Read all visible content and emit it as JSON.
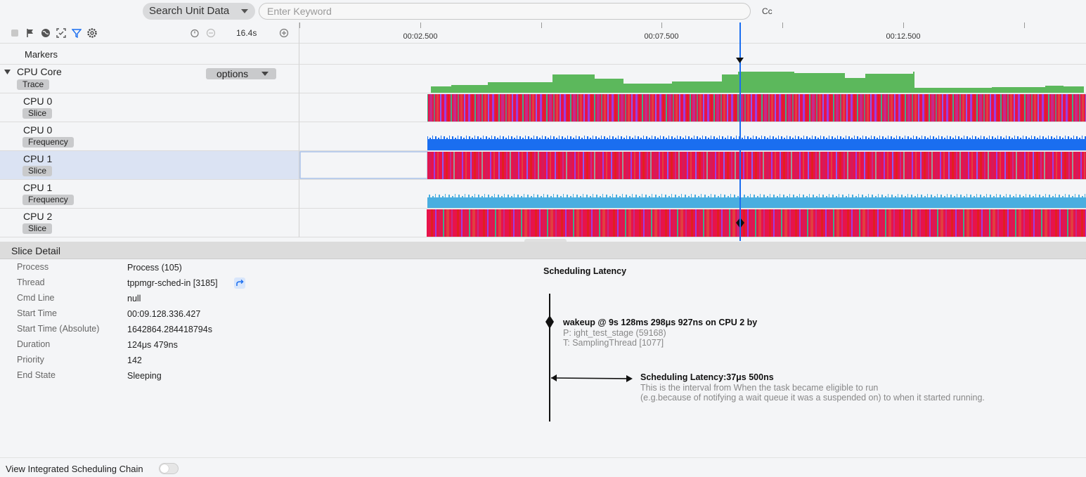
{
  "search": {
    "unit_label": "Search Unit Data",
    "keyword_placeholder": "Enter Keyword",
    "case_label": "Cc"
  },
  "toolbar": {
    "zoom_value": "16.4s"
  },
  "ruler": {
    "ticks": [
      "00:02.500",
      "00:07.500",
      "00:12.500"
    ]
  },
  "rows": {
    "markers": "Markers",
    "cpu_core": {
      "name": "CPU Core",
      "tag": "Trace",
      "options": "options"
    },
    "tracks": [
      {
        "name": "CPU 0",
        "tag": "Slice"
      },
      {
        "name": "CPU 0",
        "tag": "Frequency"
      },
      {
        "name": "CPU 1",
        "tag": "Slice"
      },
      {
        "name": "CPU 1",
        "tag": "Frequency"
      },
      {
        "name": "CPU 2",
        "tag": "Slice"
      }
    ]
  },
  "detail": {
    "title": "Slice Detail",
    "fields": [
      {
        "key": "Process",
        "value": "Process (105)"
      },
      {
        "key": "Thread",
        "value": "tppmgr-sched-in [3185]"
      },
      {
        "key": "Cmd Line",
        "value": "null"
      },
      {
        "key": "Start Time",
        "value": "00:09.128.336.427"
      },
      {
        "key": "Start Time (Absolute)",
        "value": "1642864.284418794s"
      },
      {
        "key": "Duration",
        "value": "124μs 479ns"
      },
      {
        "key": "Priority",
        "value": "142"
      },
      {
        "key": "End State",
        "value": "Sleeping"
      }
    ],
    "latency": {
      "title": "Scheduling Latency",
      "wakeup": "wakeup @ 9s 128ms 298μs 927ns on CPU 2 by",
      "process": "P: ight_test_stage (59168)",
      "thread": "T: SamplingThread [1077]",
      "latency_value": "Scheduling Latency:37μs 500ns",
      "desc1": "This is the interval from When the task became eligible to run",
      "desc2": "(e.g.because of notifying a wait queue it was a suspended on) to when it started running."
    }
  },
  "footer": {
    "chain_label": "View Integrated Scheduling Chain",
    "chain_enabled": false
  },
  "colors": {
    "accent": "#1a6ef0",
    "cpu_usage": "#5cb85c",
    "freq0": "#1a6ef0",
    "freq1": "#4aaee0"
  }
}
